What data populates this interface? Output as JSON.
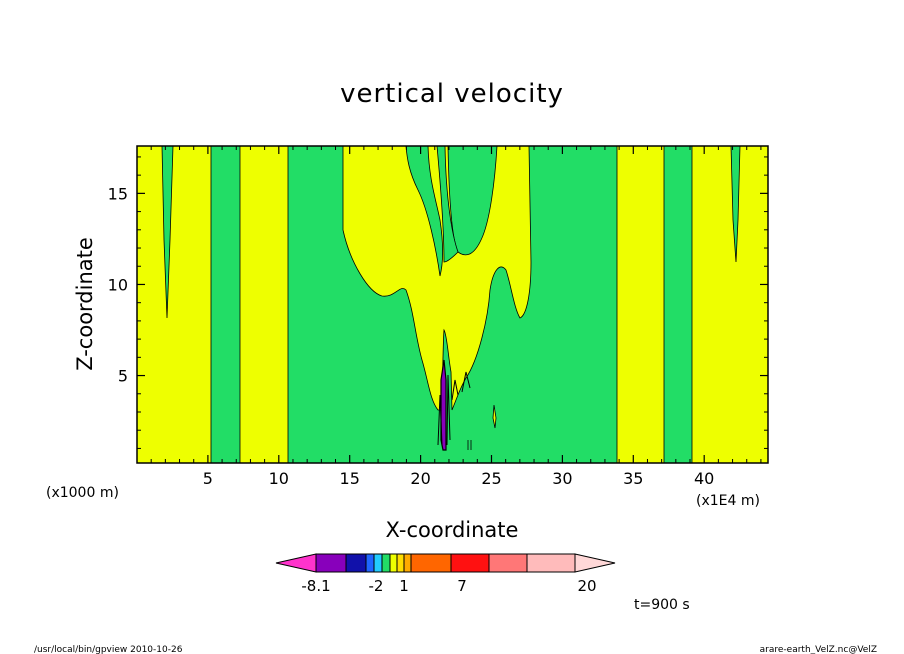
{
  "chart_data": {
    "type": "heatmap",
    "title": "vertical velocity",
    "xlabel": "X-coordinate",
    "ylabel": "Z-coordinate",
    "xlim": [
      0,
      44.5
    ],
    "ylim": [
      0.2,
      17.6
    ],
    "x_ticks": [
      5,
      10,
      15,
      20,
      25,
      30,
      35,
      40
    ],
    "x_tick_labels": [
      "5",
      "10",
      "15",
      "20",
      "25",
      "30",
      "35",
      "40"
    ],
    "y_ticks": [
      5,
      10,
      15
    ],
    "y_tick_labels": [
      "5",
      "10",
      "15"
    ],
    "x_unit_left": "(x1000 m)",
    "x_unit_right": "(x1E4 m)",
    "time_label": "t=900 s",
    "colorbar": {
      "tick_labels": [
        "-8.1",
        "-2",
        "1",
        "7",
        "20"
      ],
      "colors": [
        "#ff33cc",
        "#8800bb",
        "#1111aa",
        "#1f66ff",
        "#22ccff",
        "#22dd66",
        "#eeff00",
        "#ffdd00",
        "#ffaa00",
        "#ff6600",
        "#ff1111",
        "#ff7777",
        "#ffbbbb",
        "#ffd8d8"
      ]
    },
    "regions": [
      {
        "level": "positive-small",
        "color": "#eeff00",
        "x_range": [
          0,
          44.5
        ],
        "z_range": [
          0.2,
          17.6
        ]
      },
      {
        "level": "negative-small",
        "color": "#22dd66",
        "x_range": [
          5.4,
          7.3
        ],
        "z_range": [
          0.2,
          17.6
        ]
      },
      {
        "level": "negative-small",
        "color": "#22dd66",
        "x_range": [
          10.7,
          34.1
        ],
        "z_range": [
          0.2,
          17.6
        ]
      },
      {
        "level": "negative-small",
        "color": "#22dd66",
        "x_range": [
          37.5,
          39.5
        ],
        "z_range": [
          0.2,
          17.6
        ]
      }
    ]
  },
  "footer": {
    "left": "/usr/local/bin/gpview  2010-10-26",
    "right": "arare-earth_VelZ.nc@VelZ"
  }
}
